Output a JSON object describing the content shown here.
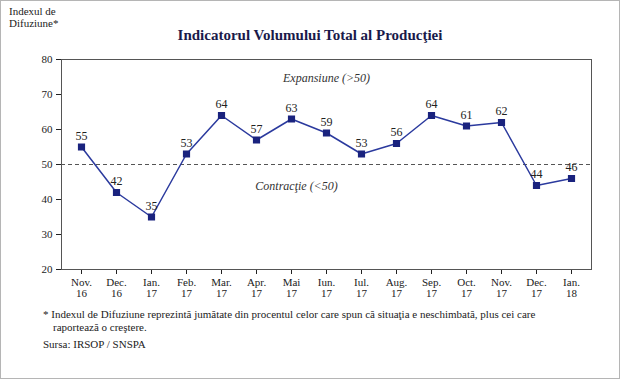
{
  "chart_data": {
    "type": "line",
    "title": "Indicatorul Volumului Total al Producţiei",
    "y_label": "Indexul de\nDifuziune*",
    "categories": [
      "Nov.\n16",
      "Dec.\n16",
      "Ian.\n17",
      "Feb.\n17",
      "Mar.\n17",
      "Apr.\n17",
      "Mai\n17",
      "Iun.\n17",
      "Iul.\n17",
      "Aug.\n17",
      "Sep.\n17",
      "Oct.\n17",
      "Nov.\n17",
      "Dec.\n17",
      "Ian.\n18"
    ],
    "values": [
      55,
      42,
      35,
      53,
      64,
      57,
      63,
      59,
      53,
      56,
      64,
      61,
      62,
      44,
      46
    ],
    "color": "#2b3a9e",
    "marker": "square",
    "data_labels": true,
    "grid": false,
    "ylim": [
      20,
      80
    ],
    "yticks": [
      20,
      30,
      40,
      50,
      60,
      70,
      80
    ],
    "threshold": 50,
    "annotations": [
      "Expansiune (>50)",
      "Contracţie (<50)"
    ],
    "footnote": "* Indexul de Difuziune reprezintă jumătate din procentul celor care spun că situaţia e neschimbată, plus cei care raportează o creştere.",
    "source": "Sursa: IRSOP / SNSPA"
  }
}
